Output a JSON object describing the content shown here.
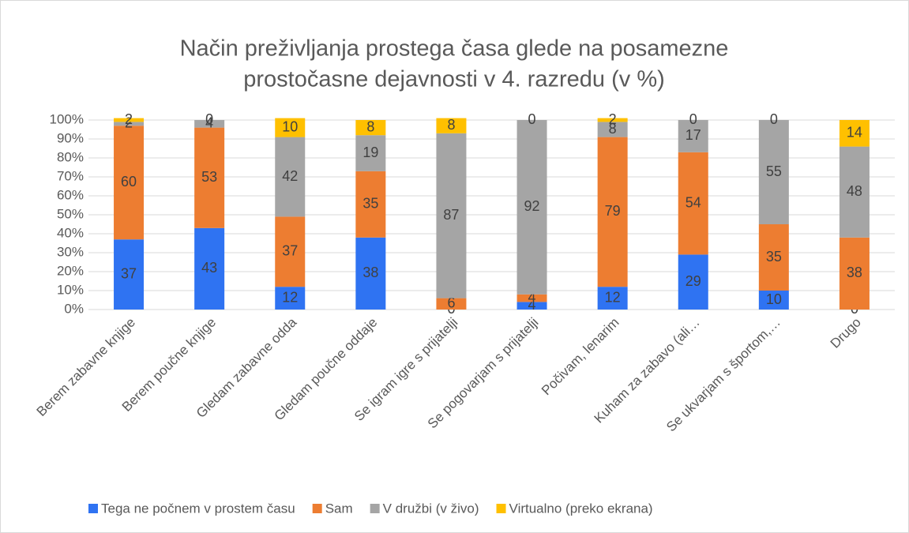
{
  "chart_data": {
    "type": "bar",
    "stacked": true,
    "title": [
      "Način preživljanja prostega časa glede na posamezne",
      "prostočasne dejavnosti v 4. razredu (v %)"
    ],
    "categories": [
      "Berem zabavne knjige",
      "Berem poučne knjige",
      "Gledam zabavne odda",
      "Gledam poučne oddaje",
      "Se igram igre s prijatelji",
      "Se pogovarjam s prijatelji",
      "Počivam, lenarim",
      "Kuham za zabavo (ali…",
      "Se ukvarjam s športom,…",
      "Drugo"
    ],
    "series": [
      {
        "name": "Tega ne počnem v prostem času",
        "color": "#2f73f2",
        "values": [
          37,
          43,
          12,
          38,
          0,
          4,
          12,
          29,
          10,
          0
        ]
      },
      {
        "name": "Sam",
        "color": "#ed7d31",
        "values": [
          60,
          53,
          37,
          35,
          6,
          4,
          79,
          54,
          35,
          38
        ]
      },
      {
        "name": "V družbi (v živo)",
        "color": "#a5a5a5",
        "values": [
          2,
          4,
          42,
          19,
          87,
          92,
          8,
          17,
          55,
          48
        ]
      },
      {
        "name": "Virtualno (preko ekrana)",
        "color": "#ffc000",
        "values": [
          2,
          0,
          10,
          8,
          8,
          0,
          2,
          0,
          0,
          14
        ]
      }
    ],
    "ylim": [
      0,
      100
    ],
    "yticks": [
      {
        "value": 0,
        "label": "0%"
      },
      {
        "value": 10,
        "label": "10%"
      },
      {
        "value": 20,
        "label": "20%"
      },
      {
        "value": 30,
        "label": "30%"
      },
      {
        "value": 40,
        "label": "40%"
      },
      {
        "value": 50,
        "label": "50%"
      },
      {
        "value": 60,
        "label": "60%"
      },
      {
        "value": 70,
        "label": "70%"
      },
      {
        "value": 80,
        "label": "80%"
      },
      {
        "value": 90,
        "label": "90%"
      },
      {
        "value": 100,
        "label": "100%"
      }
    ],
    "grid": true,
    "legend": "bottom"
  }
}
